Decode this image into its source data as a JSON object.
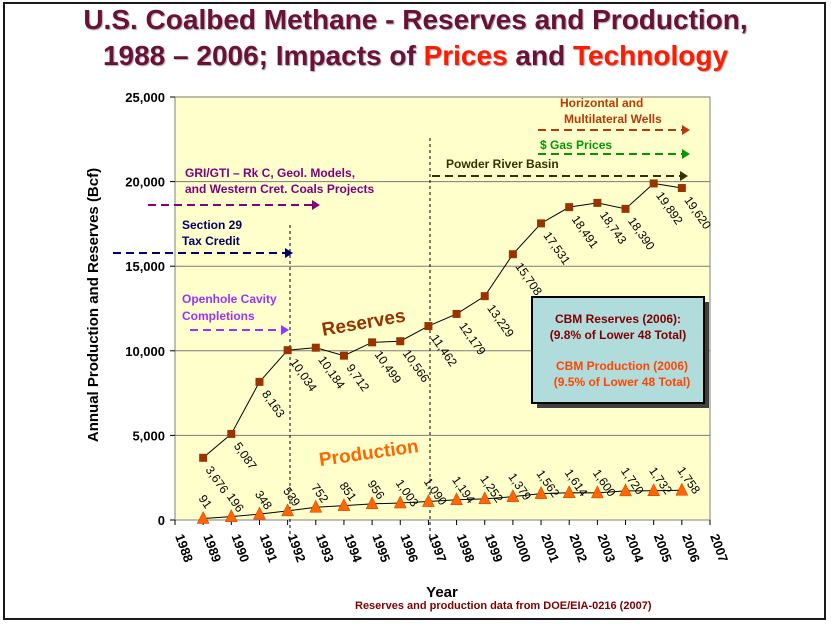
{
  "title": {
    "line1": "U.S. Coalbed Methane - Reserves and Production,",
    "line2_pre": "1988 – 2006; Impacts of ",
    "line2_red1": "Prices",
    "line2_mid": " and ",
    "line2_red2": "Technology"
  },
  "colors": {
    "title": "#6b1037",
    "accent_red": "#ff1a00",
    "plot_bg": "#ffffcc",
    "reserves": "#993300",
    "production": "#ff6600",
    "info_box": "#b0dcdc",
    "gri_arrow": "#800080",
    "section29_arrow": "#000066",
    "openhole_arrow": "#9933ff",
    "prb_arrow": "#333300",
    "gas_prices_arrow": "#009900",
    "horizontal_arrow": "#b83a0a"
  },
  "chart_data": {
    "type": "line",
    "title": "U.S. Coalbed Methane - Reserves and Production, 1988 – 2006; Impacts of Prices and Technology",
    "xlabel": "Year",
    "ylabel": "Annual Production and Reserves (Bcf)",
    "xlim": [
      1988,
      2007
    ],
    "ylim": [
      0,
      25000
    ],
    "yticks": [
      "0",
      "5,000",
      "10,000",
      "15,000",
      "20,000",
      "25,000"
    ],
    "ytick_values": [
      0,
      5000,
      10000,
      15000,
      20000,
      25000
    ],
    "xticks": [
      "1988",
      "1989",
      "1990",
      "1991",
      "1992",
      "1993",
      "1994",
      "1995",
      "1996",
      "1997",
      "1998",
      "1999",
      "2000",
      "2001",
      "2002",
      "2003",
      "2004",
      "2005",
      "2006",
      "2007"
    ],
    "grid": true,
    "series": [
      {
        "name": "Reserves",
        "x": [
          1989,
          1990,
          1991,
          1992,
          1993,
          1994,
          1995,
          1996,
          1997,
          1998,
          1999,
          2000,
          2001,
          2002,
          2003,
          2004,
          2005,
          2006
        ],
        "values": [
          3676,
          5087,
          8163,
          10034,
          10184,
          9712,
          10499,
          10566,
          11462,
          12179,
          13229,
          15708,
          17531,
          18491,
          18743,
          18390,
          19892,
          19620
        ],
        "labels": [
          "3,676",
          "5,087",
          "8,163",
          "10,034",
          "10,184",
          "9,712",
          "10,499",
          "10,566",
          "11,462",
          "12,179",
          "13,229",
          "15,708",
          "17,531",
          "18,491",
          "18,743",
          "18,390",
          "19,892",
          "19,620"
        ]
      },
      {
        "name": "Production",
        "x": [
          1989,
          1990,
          1991,
          1992,
          1993,
          1994,
          1995,
          1996,
          1997,
          1998,
          1999,
          2000,
          2001,
          2002,
          2003,
          2004,
          2005,
          2006
        ],
        "values": [
          91,
          196,
          348,
          539,
          752,
          851,
          956,
          1003,
          1090,
          1194,
          1252,
          1379,
          1562,
          1614,
          1600,
          1720,
          1732,
          1758
        ],
        "labels": [
          "91",
          "196",
          "348",
          "539",
          "752",
          "851",
          "956",
          "1,003",
          "1,090",
          "1,194",
          "1,252",
          "1,379",
          "1,562",
          "1,614",
          "1,600",
          "1,720",
          "1,732",
          "1,758"
        ]
      }
    ],
    "annotations": {
      "gri": [
        "GRI/GTI – Rk C, Geol. Models,",
        "and Western Cret. Coals Projects"
      ],
      "section29": [
        "Section 29",
        "Tax Credit"
      ],
      "openhole": [
        "Openhole Cavity",
        "Completions"
      ],
      "prb": "Powder River Basin",
      "gas_prices": "$ Gas Prices",
      "horizontal": [
        "Horizontal and",
        "Multilateral Wells"
      ],
      "info_box": {
        "reserves_line1": "CBM Reserves (2006):",
        "reserves_line2": "(9.8% of Lower 48 Total)",
        "production_line1": "CBM Production (2006)",
        "production_line2": "(9.5% of Lower 48 Total)"
      },
      "source": "Reserves and production data from DOE/EIA-0216 (2007)"
    }
  }
}
